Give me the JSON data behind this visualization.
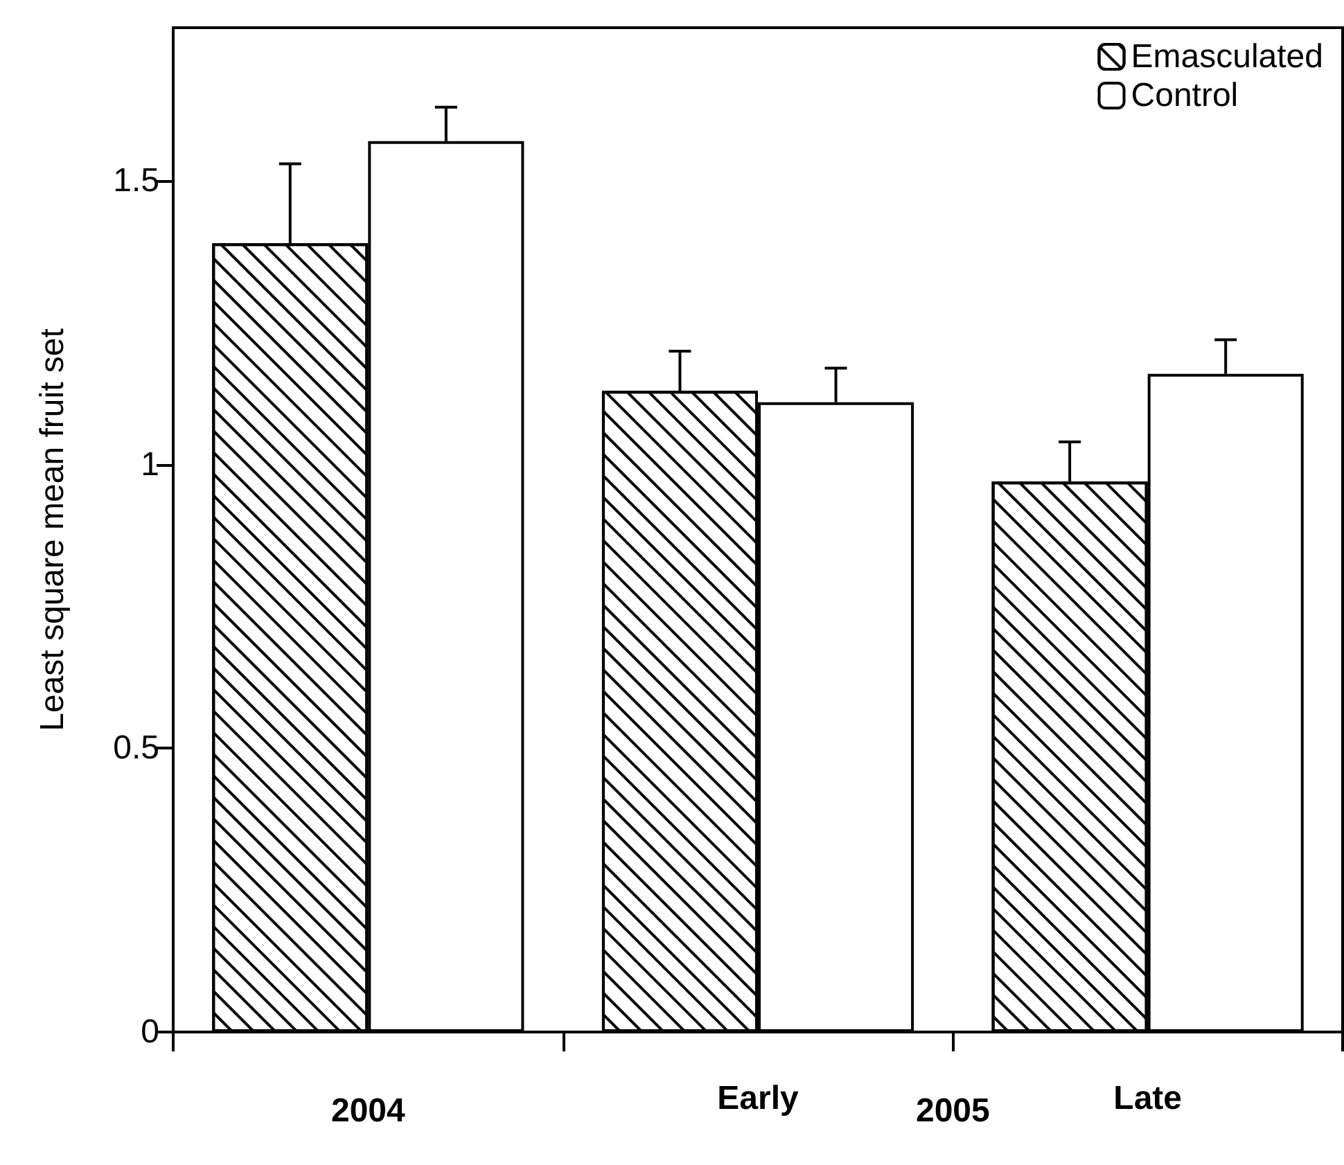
{
  "chart_data": {
    "type": "bar",
    "ylabel": "Least square mean fruit set",
    "categories": [
      null,
      "Early",
      "Late"
    ],
    "series": [
      {
        "name": "Emasculated",
        "color": "#ffffff",
        "values": [
          1.39,
          1.13,
          0.97
        ],
        "errors": [
          [
            1.39,
            1.53
          ],
          [
            1.13,
            1.2
          ],
          [
            0.97,
            1.04
          ]
        ]
      },
      {
        "name": "Control",
        "color": "#ffffff",
        "values": [
          1.57,
          1.11,
          1.16
        ],
        "errors": [
          [
            1.57,
            1.63
          ],
          [
            1.11,
            1.17
          ],
          [
            1.16,
            1.22
          ]
        ]
      }
    ],
    "annotations": [
      "2004",
      "2005"
    ],
    "ylim": [
      0,
      1.77
    ],
    "yticks": [
      0,
      0.5,
      1,
      1.5
    ],
    "grid": false,
    "legend": "top right"
  }
}
